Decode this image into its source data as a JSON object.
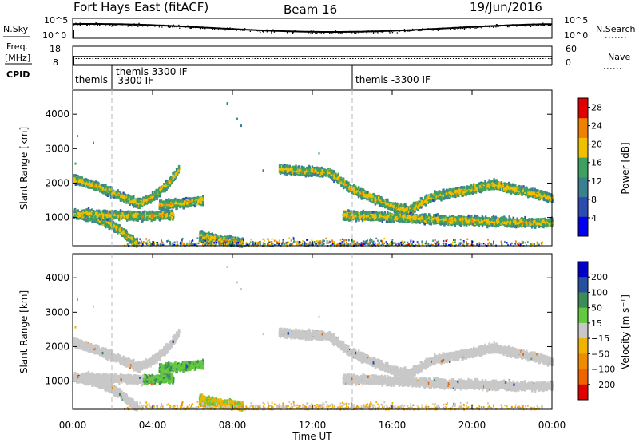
{
  "header": {
    "station": "Fort Hays East (fitACF)",
    "beam": "Beam 16",
    "date": "19/Jun/2016"
  },
  "noise_panel": {
    "left_label": "N.Sky",
    "right_label": "N.Search",
    "left_ticks": [
      "10^5",
      "10^0"
    ],
    "right_ticks": [
      "10^5",
      "10^0"
    ]
  },
  "freq_panel": {
    "left_label_1": "Freq.",
    "left_label_2": "[MHz]",
    "right_label": "Nave",
    "left_ticks": [
      "18",
      "8"
    ],
    "right_ticks": [
      "60",
      "0"
    ]
  },
  "cpid_panel": {
    "label": "CPID",
    "segments": [
      {
        "text": "themis"
      },
      {
        "text": "themis 3300 IF",
        "text2": "-3300 IF"
      },
      {
        "text": "themis -3300 IF"
      }
    ]
  },
  "x_axis": {
    "label": "Time UT",
    "ticks": [
      "00:00",
      "04:00",
      "08:00",
      "12:00",
      "16:00",
      "20:00",
      "00:00"
    ]
  },
  "chart_data": [
    {
      "type": "heatmap",
      "title": "",
      "xlabel": "Time UT",
      "ylabel": "Slant Range [km]",
      "x_ticks": [
        "00:00",
        "04:00",
        "08:00",
        "12:00",
        "16:00",
        "20:00",
        "00:00"
      ],
      "xlim_hours": [
        0,
        24
      ],
      "ylim": [
        180,
        4700
      ],
      "y_ticks": [
        1000,
        2000,
        3000,
        4000
      ],
      "colorbar": {
        "label": "Power [dB]",
        "ticks": [
          4,
          8,
          12,
          16,
          20,
          24,
          28
        ],
        "range": [
          0,
          30
        ],
        "colors": [
          "#0000ee",
          "#2c4cb0",
          "#3a8090",
          "#40a060",
          "#f0c000",
          "#f08000",
          "#e00000"
        ]
      },
      "echo_bands": [
        {
          "t": [
            0.0,
            1.5,
            2.5,
            3.3,
            4.0,
            4.8,
            5.3
          ],
          "r": [
            2150,
            1880,
            1620,
            1430,
            1650,
            2050,
            2450
          ]
        },
        {
          "t": [
            0.0,
            1.2,
            2.0,
            2.5,
            2.9,
            3.2
          ],
          "r": [
            1150,
            1000,
            800,
            600,
            400,
            260
          ]
        },
        {
          "t": [
            0.5,
            2.0,
            3.5,
            5.0
          ],
          "r": [
            1150,
            1100,
            1080,
            1120
          ]
        },
        {
          "t": [
            4.3,
            5.5,
            6.5
          ],
          "r": [
            1400,
            1450,
            1550
          ]
        },
        {
          "t": [
            6.3,
            7.5,
            8.5
          ],
          "r": [
            500,
            380,
            300
          ]
        },
        {
          "t": [
            10.3,
            11.5,
            12.8,
            13.8,
            15.0,
            16.0,
            16.8,
            18.0,
            19.5,
            21.0,
            22.5,
            24.0
          ],
          "r": [
            2450,
            2380,
            2350,
            1900,
            1600,
            1350,
            1250,
            1650,
            1800,
            2000,
            1800,
            1600
          ]
        },
        {
          "t": [
            13.5,
            16.0,
            19.0,
            22.0,
            24.0
          ],
          "r": [
            1100,
            1050,
            950,
            900,
            880
          ]
        }
      ]
    },
    {
      "type": "heatmap",
      "title": "",
      "xlabel": "Time UT",
      "ylabel": "Slant Range [km]",
      "x_ticks": [
        "00:00",
        "04:00",
        "08:00",
        "12:00",
        "16:00",
        "20:00",
        "00:00"
      ],
      "xlim_hours": [
        0,
        24
      ],
      "ylim": [
        180,
        4700
      ],
      "y_ticks": [
        1000,
        2000,
        3000,
        4000
      ],
      "colorbar": {
        "label": "Velocity [m s^-1]",
        "tick_values": [
          200,
          100,
          50,
          15,
          -15,
          -50,
          -100,
          -200
        ],
        "tick_labels": [
          "200",
          "100",
          "50",
          "15",
          "−15",
          "−50",
          "−100",
          "−200"
        ],
        "colors": [
          "#0000c8",
          "#2850a0",
          "#3c8c5a",
          "#64c840",
          "#c8c8c8",
          "#f0b400",
          "#f08c00",
          "#f06400",
          "#e00000"
        ]
      },
      "echo_bands_ref": "same echo regions as power panel; mostly near-zero velocity (grey), green patches around 04:00-07:00 near 1000-1300 km, orange near-range echoes 06:00-16:00"
    }
  ]
}
